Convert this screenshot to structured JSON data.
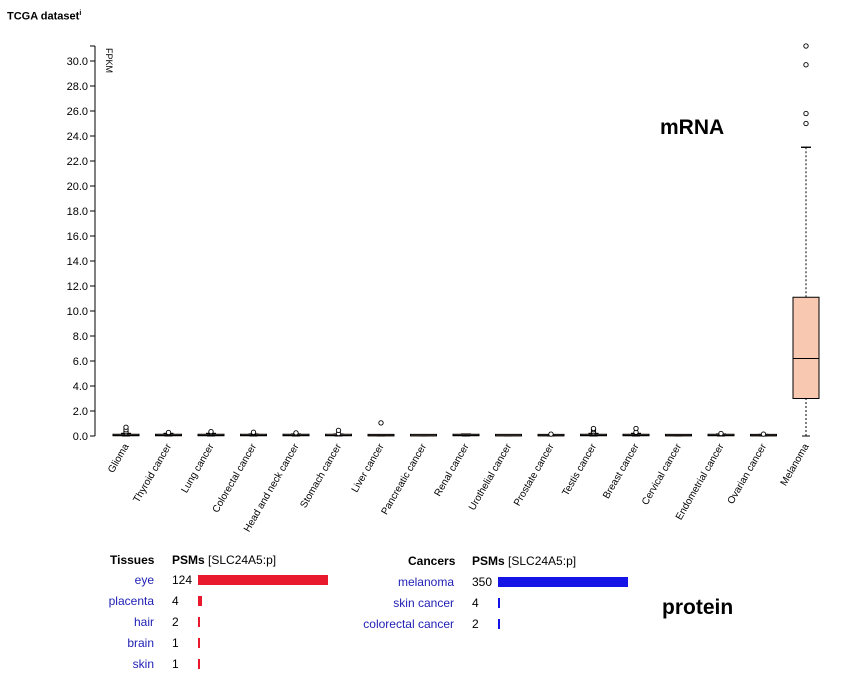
{
  "header": {
    "title": "TCGA dataset",
    "info_marker": "i"
  },
  "labels": {
    "mrna": "mRNA",
    "protein": "protein"
  },
  "chart_data": {
    "type": "box",
    "ylabel": "FPKM",
    "ylim": [
      0,
      31.2
    ],
    "yticks": [
      "0.0",
      "2.0",
      "4.0",
      "6.0",
      "8.0",
      "10.0",
      "12.0",
      "14.0",
      "16.0",
      "18.0",
      "20.0",
      "22.0",
      "24.0",
      "26.0",
      "28.0",
      "30.0"
    ],
    "box_color": "#f8c8b0",
    "categories": [
      "Glioma",
      "Thyroid cancer",
      "Lung cancer",
      "Colorectal cancer",
      "Head and neck cancer",
      "Stomach cancer",
      "Liver cancer",
      "Pancreatic cancer",
      "Renal cancer",
      "Urothelial cancer",
      "Prostate cancer",
      "Testis cancer",
      "Breast cancer",
      "Cervical cancer",
      "Endometrial cancer",
      "Ovarian cancer",
      "Melanoma"
    ],
    "boxes": [
      {
        "min": 0,
        "q1": 0.02,
        "median": 0.05,
        "q3": 0.08,
        "max": 0.2,
        "outliers": [
          0.25,
          0.35,
          0.5,
          0.7
        ]
      },
      {
        "min": 0,
        "q1": 0.02,
        "median": 0.05,
        "q3": 0.08,
        "max": 0.2,
        "outliers": [
          0.22,
          0.28
        ]
      },
      {
        "min": 0,
        "q1": 0.02,
        "median": 0.05,
        "q3": 0.08,
        "max": 0.2,
        "outliers": [
          0.22,
          0.3,
          0.35
        ]
      },
      {
        "min": 0,
        "q1": 0.02,
        "median": 0.05,
        "q3": 0.08,
        "max": 0.15,
        "outliers": [
          0.18,
          0.25,
          0.3
        ]
      },
      {
        "min": 0,
        "q1": 0.02,
        "median": 0.05,
        "q3": 0.08,
        "max": 0.15,
        "outliers": [
          0.2,
          0.25
        ]
      },
      {
        "min": 0,
        "q1": 0.02,
        "median": 0.04,
        "q3": 0.08,
        "max": 0.15,
        "outliers": [
          0.2,
          0.45
        ]
      },
      {
        "min": 0,
        "q1": 0.01,
        "median": 0.03,
        "q3": 0.05,
        "max": 0.1,
        "outliers": [
          1.05
        ]
      },
      {
        "min": 0,
        "q1": 0.01,
        "median": 0.02,
        "q3": 0.04,
        "max": 0.08,
        "outliers": []
      },
      {
        "min": 0,
        "q1": 0.02,
        "median": 0.05,
        "q3": 0.08,
        "max": 0.15,
        "outliers": []
      },
      {
        "min": 0,
        "q1": 0.01,
        "median": 0.02,
        "q3": 0.04,
        "max": 0.08,
        "outliers": []
      },
      {
        "min": 0,
        "q1": 0.01,
        "median": 0.03,
        "q3": 0.05,
        "max": 0.1,
        "outliers": [
          0.15
        ]
      },
      {
        "min": 0,
        "q1": 0.02,
        "median": 0.05,
        "q3": 0.1,
        "max": 0.2,
        "outliers": [
          0.25,
          0.35,
          0.5,
          0.6
        ]
      },
      {
        "min": 0,
        "q1": 0.02,
        "median": 0.05,
        "q3": 0.1,
        "max": 0.2,
        "outliers": [
          0.25,
          0.3,
          0.6
        ]
      },
      {
        "min": 0,
        "q1": 0.01,
        "median": 0.03,
        "q3": 0.05,
        "max": 0.1,
        "outliers": []
      },
      {
        "min": 0,
        "q1": 0.02,
        "median": 0.05,
        "q3": 0.08,
        "max": 0.15,
        "outliers": [
          0.2
        ]
      },
      {
        "min": 0,
        "q1": 0.01,
        "median": 0.03,
        "q3": 0.06,
        "max": 0.12,
        "outliers": [
          0.15
        ]
      },
      {
        "min": 0,
        "q1": 3.0,
        "median": 6.2,
        "q3": 11.1,
        "max": 23.1,
        "outliers": [
          25.0,
          25.8,
          29.7,
          31.2
        ]
      }
    ]
  },
  "protein": {
    "tissues": {
      "header": "Tissues",
      "psm_header": "PSMs",
      "psm_sub": "[SLC24A5:p]",
      "bar_color": "#e8192c",
      "rows": [
        {
          "name": "eye",
          "value": 124,
          "fraction": 1.0
        },
        {
          "name": "placenta",
          "value": 4,
          "fraction": 0.032
        },
        {
          "name": "hair",
          "value": 2,
          "fraction": 0.016
        },
        {
          "name": "brain",
          "value": 1,
          "fraction": 0.008
        },
        {
          "name": "skin",
          "value": 1,
          "fraction": 0.008
        }
      ]
    },
    "cancers": {
      "header": "Cancers",
      "psm_header": "PSMs",
      "psm_sub": "[SLC24A5:p]",
      "bar_color": "#1414e6",
      "rows": [
        {
          "name": "melanoma",
          "value": 350,
          "fraction": 1.0
        },
        {
          "name": "skin cancer",
          "value": 4,
          "fraction": 0.011
        },
        {
          "name": "colorectal cancer",
          "value": 2,
          "fraction": 0.006
        }
      ]
    }
  }
}
